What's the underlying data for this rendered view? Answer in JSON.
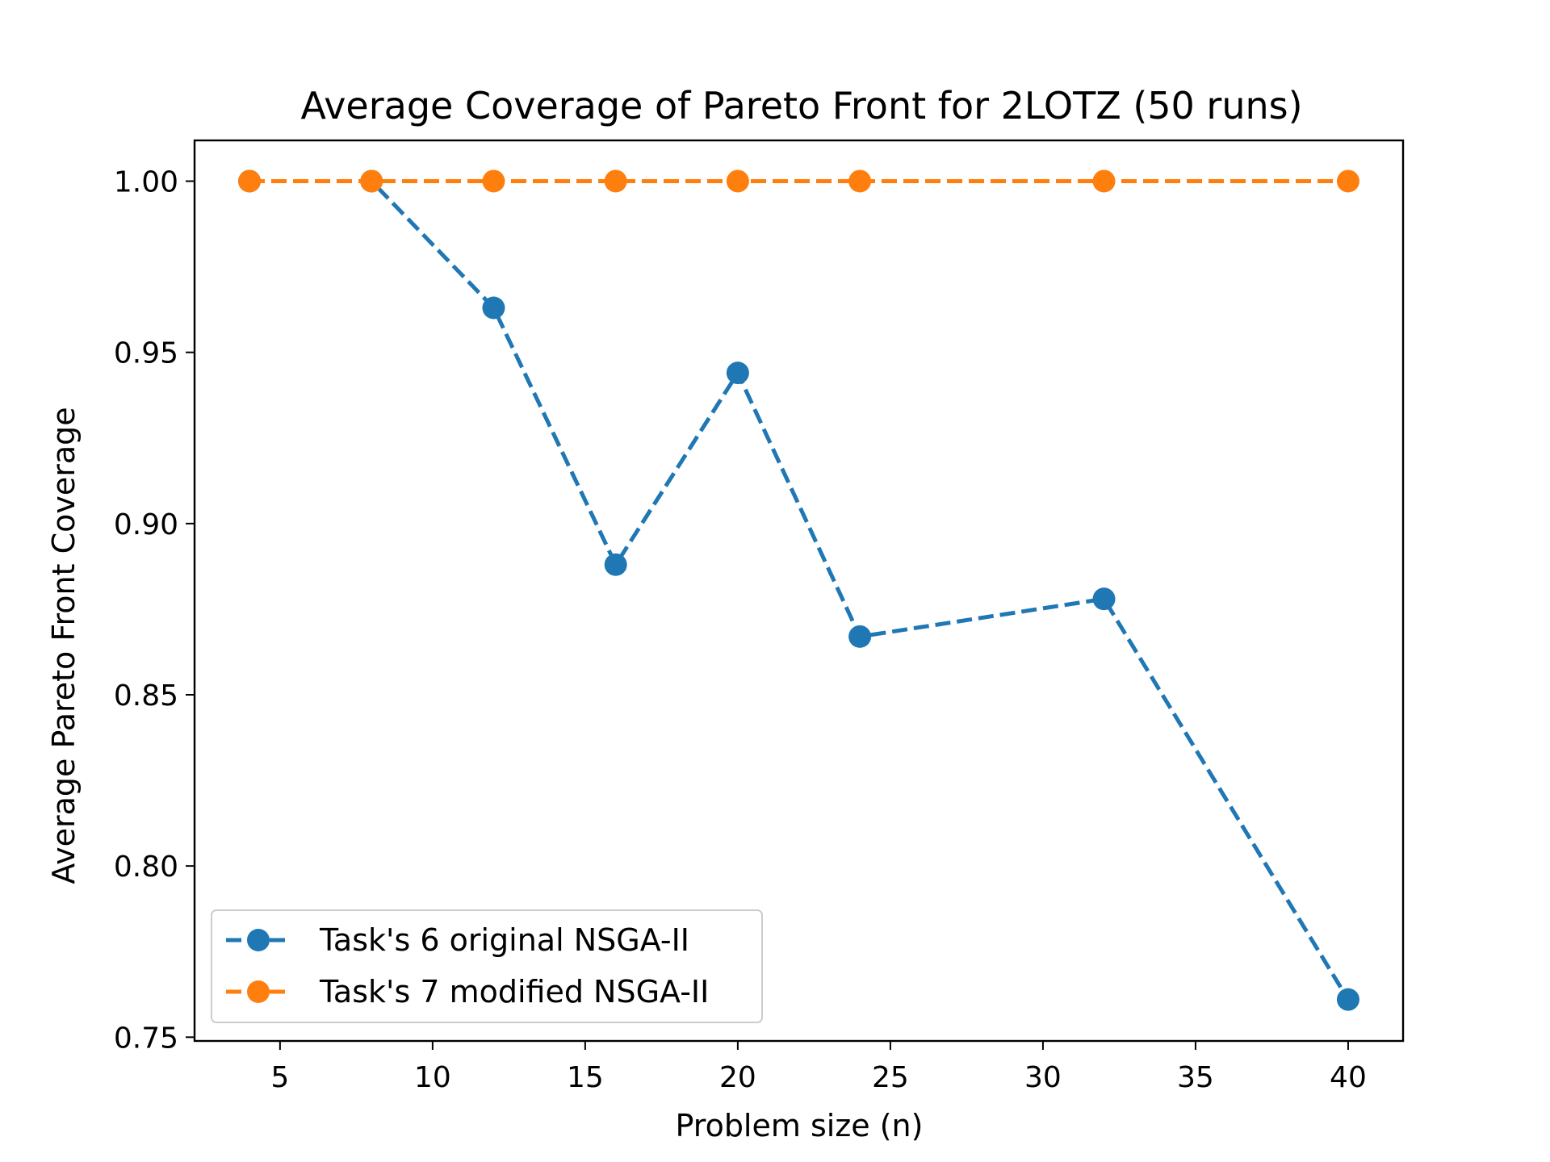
{
  "chart_data": {
    "type": "line",
    "title": "Average Coverage of Pareto Front for 2LOTZ (50 runs)",
    "xlabel": "Problem size (n)",
    "ylabel": "Average Pareto Front Coverage",
    "xlim": [
      2.2,
      41.8
    ],
    "ylim": [
      0.7489,
      1.0119
    ],
    "xticks": [
      5,
      10,
      15,
      20,
      25,
      30,
      35,
      40
    ],
    "xtick_labels": [
      "5",
      "10",
      "15",
      "20",
      "25",
      "30",
      "35",
      "40"
    ],
    "yticks": [
      0.75,
      0.8,
      0.85,
      0.9,
      0.95,
      1.0
    ],
    "ytick_labels": [
      "0.75",
      "0.80",
      "0.85",
      "0.90",
      "0.95",
      "1.00"
    ],
    "grid": false,
    "legend_position": "lower-left",
    "series": [
      {
        "name": "Task's 6 original NSGA-II",
        "color": "#1f77b4",
        "line_style": "dashed",
        "marker": "circle",
        "x": [
          4,
          8,
          12,
          16,
          20,
          24,
          32,
          40
        ],
        "y": [
          1.0,
          1.0,
          0.963,
          0.888,
          0.944,
          0.867,
          0.878,
          0.761
        ]
      },
      {
        "name": "Task's 7 modified NSGA-II",
        "color": "#ff7f0e",
        "line_style": "dashed",
        "marker": "circle",
        "x": [
          4,
          8,
          12,
          16,
          20,
          24,
          32,
          40
        ],
        "y": [
          1.0,
          1.0,
          1.0,
          1.0,
          1.0,
          1.0,
          1.0,
          1.0
        ]
      }
    ]
  }
}
